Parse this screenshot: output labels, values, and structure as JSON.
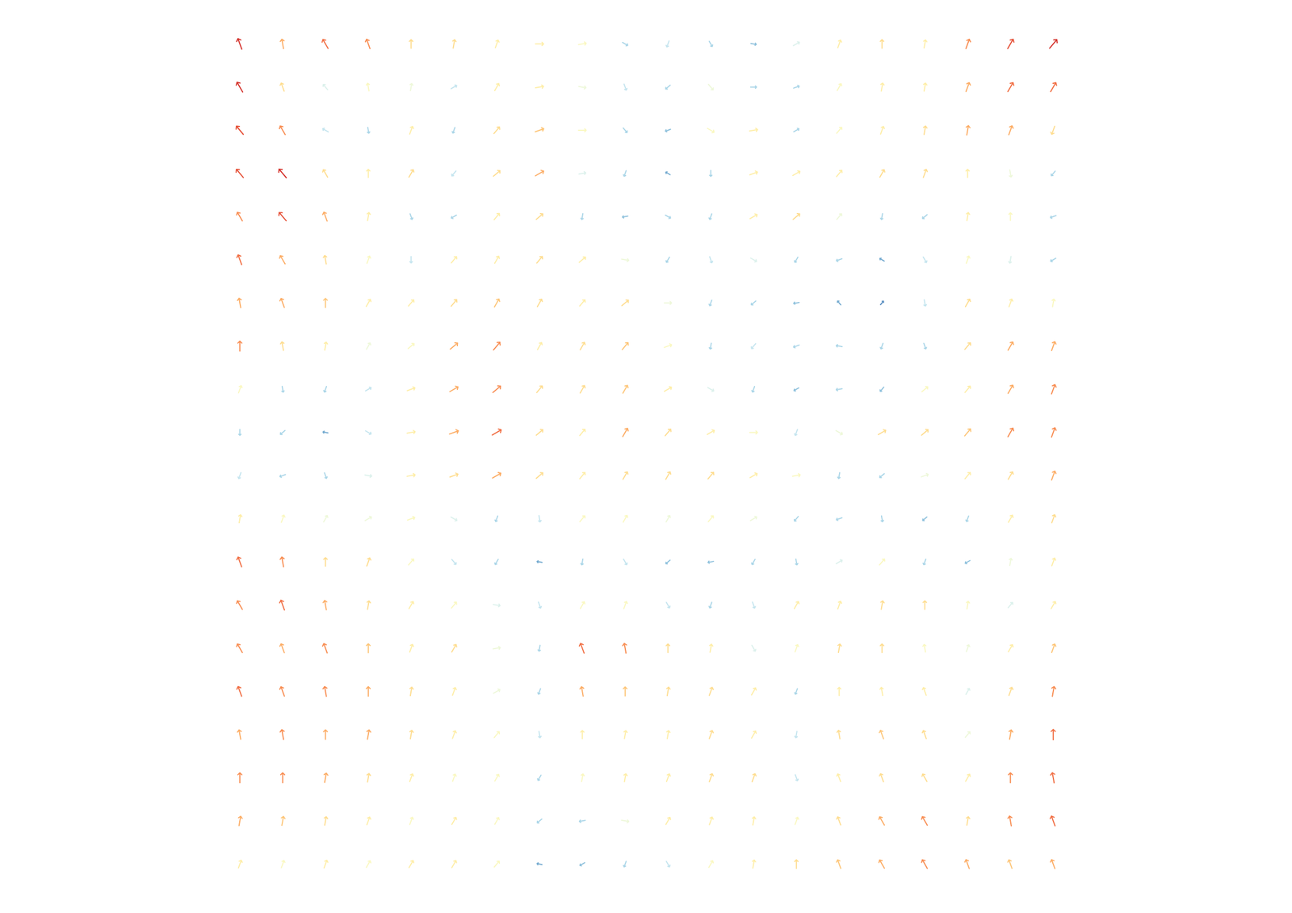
{
  "chart_data": {
    "type": "vector",
    "x": [
      0,
      1,
      2,
      3,
      4,
      5,
      6,
      7,
      8,
      9,
      10,
      11,
      12,
      13,
      14,
      15,
      16,
      17,
      18,
      19
    ],
    "y": [
      0,
      1,
      2,
      3,
      4,
      5,
      6,
      7,
      8,
      9,
      10,
      11,
      12,
      13,
      14,
      15,
      16,
      17,
      18,
      19
    ],
    "xlim": [
      -0.5,
      19.5
    ],
    "ylim": [
      -0.5,
      19.5
    ],
    "tick_labels": false,
    "color_range": [
      0,
      1
    ],
    "values": [
      [
        0.9,
        0.7,
        0.8,
        0.75,
        0.6,
        0.6,
        0.55,
        0.55,
        0.5,
        0.3,
        0.35,
        0.3,
        0.25,
        0.4,
        0.55,
        0.6,
        0.55,
        0.75,
        0.85,
        0.9
      ],
      [
        0.9,
        0.6,
        0.4,
        0.5,
        0.45,
        0.35,
        0.55,
        0.55,
        0.45,
        0.35,
        0.3,
        0.45,
        0.3,
        0.3,
        0.5,
        0.55,
        0.55,
        0.7,
        0.8,
        0.8
      ],
      [
        0.85,
        0.75,
        0.35,
        0.3,
        0.55,
        0.3,
        0.6,
        0.65,
        0.5,
        0.3,
        0.25,
        0.5,
        0.55,
        0.3,
        0.5,
        0.55,
        0.6,
        0.7,
        0.7,
        0.6
      ],
      [
        0.85,
        0.9,
        0.6,
        0.55,
        0.6,
        0.35,
        0.6,
        0.7,
        0.4,
        0.3,
        0.2,
        0.3,
        0.55,
        0.55,
        0.55,
        0.6,
        0.6,
        0.55,
        0.45,
        0.3
      ],
      [
        0.75,
        0.85,
        0.7,
        0.55,
        0.3,
        0.3,
        0.55,
        0.6,
        0.3,
        0.25,
        0.3,
        0.3,
        0.55,
        0.6,
        0.45,
        0.3,
        0.3,
        0.55,
        0.5,
        0.3
      ],
      [
        0.8,
        0.7,
        0.6,
        0.5,
        0.35,
        0.55,
        0.55,
        0.6,
        0.55,
        0.45,
        0.3,
        0.35,
        0.4,
        0.3,
        0.3,
        0.2,
        0.35,
        0.5,
        0.4,
        0.3
      ],
      [
        0.7,
        0.7,
        0.65,
        0.55,
        0.55,
        0.6,
        0.65,
        0.6,
        0.55,
        0.6,
        0.45,
        0.3,
        0.3,
        0.25,
        0.2,
        0.15,
        0.35,
        0.6,
        0.55,
        0.5
      ],
      [
        0.75,
        0.6,
        0.55,
        0.45,
        0.5,
        0.7,
        0.75,
        0.55,
        0.6,
        0.65,
        0.5,
        0.3,
        0.35,
        0.3,
        0.3,
        0.3,
        0.3,
        0.6,
        0.7,
        0.7
      ],
      [
        0.5,
        0.3,
        0.3,
        0.35,
        0.55,
        0.7,
        0.75,
        0.6,
        0.6,
        0.65,
        0.55,
        0.4,
        0.3,
        0.25,
        0.3,
        0.25,
        0.5,
        0.55,
        0.7,
        0.75
      ],
      [
        0.3,
        0.3,
        0.2,
        0.35,
        0.55,
        0.7,
        0.8,
        0.6,
        0.55,
        0.7,
        0.6,
        0.55,
        0.5,
        0.35,
        0.45,
        0.6,
        0.6,
        0.65,
        0.75,
        0.75
      ],
      [
        0.35,
        0.3,
        0.3,
        0.4,
        0.55,
        0.6,
        0.7,
        0.6,
        0.55,
        0.6,
        0.6,
        0.6,
        0.55,
        0.5,
        0.3,
        0.3,
        0.45,
        0.55,
        0.6,
        0.7
      ],
      [
        0.55,
        0.5,
        0.45,
        0.45,
        0.5,
        0.4,
        0.3,
        0.35,
        0.5,
        0.5,
        0.45,
        0.5,
        0.45,
        0.3,
        0.3,
        0.3,
        0.25,
        0.3,
        0.55,
        0.6
      ],
      [
        0.8,
        0.75,
        0.6,
        0.6,
        0.5,
        0.35,
        0.3,
        0.2,
        0.3,
        0.35,
        0.25,
        0.25,
        0.3,
        0.3,
        0.4,
        0.5,
        0.3,
        0.25,
        0.45,
        0.55
      ],
      [
        0.75,
        0.8,
        0.7,
        0.6,
        0.55,
        0.5,
        0.4,
        0.35,
        0.5,
        0.5,
        0.35,
        0.3,
        0.35,
        0.55,
        0.55,
        0.6,
        0.6,
        0.5,
        0.4,
        0.55
      ],
      [
        0.75,
        0.7,
        0.75,
        0.65,
        0.55,
        0.6,
        0.45,
        0.3,
        0.8,
        0.75,
        0.6,
        0.55,
        0.4,
        0.5,
        0.6,
        0.6,
        0.5,
        0.45,
        0.55,
        0.65
      ],
      [
        0.8,
        0.75,
        0.75,
        0.7,
        0.6,
        0.55,
        0.45,
        0.3,
        0.7,
        0.65,
        0.6,
        0.6,
        0.55,
        0.3,
        0.55,
        0.55,
        0.55,
        0.4,
        0.6,
        0.75
      ],
      [
        0.7,
        0.75,
        0.7,
        0.7,
        0.6,
        0.55,
        0.5,
        0.35,
        0.55,
        0.55,
        0.55,
        0.6,
        0.55,
        0.35,
        0.6,
        0.65,
        0.6,
        0.45,
        0.7,
        0.8
      ],
      [
        0.75,
        0.75,
        0.7,
        0.6,
        0.55,
        0.5,
        0.5,
        0.3,
        0.5,
        0.55,
        0.55,
        0.6,
        0.6,
        0.35,
        0.55,
        0.6,
        0.6,
        0.55,
        0.75,
        0.8
      ],
      [
        0.7,
        0.65,
        0.6,
        0.55,
        0.5,
        0.55,
        0.5,
        0.3,
        0.3,
        0.45,
        0.55,
        0.55,
        0.55,
        0.5,
        0.6,
        0.7,
        0.75,
        0.6,
        0.75,
        0.8
      ],
      [
        0.55,
        0.5,
        0.55,
        0.5,
        0.55,
        0.55,
        0.5,
        0.2,
        0.25,
        0.3,
        0.35,
        0.5,
        0.55,
        0.6,
        0.65,
        0.7,
        0.75,
        0.7,
        0.65,
        0.7
      ]
    ],
    "angles": [
      [
        -20,
        -10,
        -30,
        -20,
        0,
        10,
        20,
        90,
        80,
        120,
        200,
        150,
        100,
        60,
        20,
        0,
        10,
        20,
        30,
        40
      ],
      [
        -30,
        -20,
        -40,
        -10,
        10,
        60,
        30,
        80,
        100,
        160,
        230,
        140,
        90,
        70,
        30,
        10,
        10,
        20,
        30,
        30
      ],
      [
        -40,
        -30,
        -60,
        170,
        20,
        200,
        40,
        70,
        90,
        140,
        250,
        120,
        80,
        60,
        40,
        20,
        10,
        10,
        20,
        200
      ],
      [
        -40,
        -40,
        -30,
        0,
        30,
        220,
        50,
        60,
        80,
        200,
        300,
        180,
        70,
        60,
        40,
        30,
        20,
        0,
        170,
        220
      ],
      [
        -30,
        -40,
        -20,
        10,
        160,
        240,
        40,
        50,
        190,
        260,
        120,
        200,
        60,
        50,
        40,
        190,
        230,
        10,
        0,
        250
      ],
      [
        -20,
        -30,
        -10,
        20,
        180,
        40,
        30,
        40,
        50,
        100,
        210,
        160,
        120,
        210,
        250,
        300,
        150,
        20,
        190,
        240
      ],
      [
        -10,
        -20,
        0,
        30,
        40,
        40,
        30,
        30,
        40,
        50,
        90,
        200,
        230,
        260,
        320,
        40,
        170,
        30,
        20,
        10
      ],
      [
        0,
        -10,
        10,
        30,
        50,
        50,
        40,
        30,
        30,
        40,
        70,
        190,
        220,
        250,
        280,
        200,
        160,
        40,
        30,
        20
      ],
      [
        20,
        170,
        200,
        60,
        70,
        60,
        50,
        40,
        30,
        30,
        60,
        120,
        200,
        240,
        260,
        220,
        50,
        40,
        30,
        20
      ],
      [
        180,
        230,
        280,
        120,
        80,
        70,
        60,
        50,
        40,
        30,
        40,
        60,
        90,
        200,
        120,
        60,
        50,
        40,
        30,
        20
      ],
      [
        200,
        250,
        160,
        100,
        80,
        70,
        60,
        50,
        40,
        30,
        30,
        40,
        60,
        80,
        190,
        230,
        70,
        40,
        30,
        20
      ],
      [
        10,
        20,
        30,
        60,
        70,
        120,
        200,
        170,
        40,
        30,
        30,
        40,
        60,
        220,
        250,
        170,
        230,
        200,
        30,
        20
      ],
      [
        -20,
        -10,
        0,
        20,
        40,
        140,
        210,
        280,
        190,
        150,
        230,
        260,
        210,
        170,
        60,
        40,
        200,
        240,
        10,
        20
      ],
      [
        -30,
        -20,
        -10,
        10,
        30,
        40,
        100,
        160,
        30,
        20,
        150,
        200,
        160,
        30,
        20,
        10,
        0,
        10,
        40,
        30
      ],
      [
        -30,
        -20,
        -20,
        0,
        20,
        30,
        80,
        190,
        -20,
        -10,
        0,
        10,
        150,
        20,
        10,
        0,
        -10,
        20,
        30,
        20
      ],
      [
        -20,
        -20,
        -10,
        0,
        10,
        20,
        60,
        200,
        -10,
        0,
        10,
        20,
        30,
        200,
        0,
        -10,
        -20,
        30,
        20,
        10
      ],
      [
        -10,
        -10,
        0,
        10,
        10,
        20,
        40,
        170,
        0,
        10,
        10,
        20,
        30,
        190,
        -10,
        -20,
        -20,
        40,
        10,
        0
      ],
      [
        0,
        0,
        10,
        10,
        20,
        20,
        30,
        210,
        10,
        10,
        20,
        20,
        20,
        160,
        -20,
        -20,
        -30,
        30,
        0,
        -10
      ],
      [
        10,
        10,
        10,
        20,
        20,
        30,
        30,
        230,
        260,
        100,
        30,
        20,
        10,
        20,
        -20,
        -30,
        -30,
        10,
        -10,
        -20
      ],
      [
        20,
        20,
        20,
        30,
        30,
        30,
        40,
        280,
        240,
        200,
        150,
        30,
        10,
        0,
        -20,
        -30,
        -30,
        -20,
        -20,
        -20
      ]
    ]
  }
}
